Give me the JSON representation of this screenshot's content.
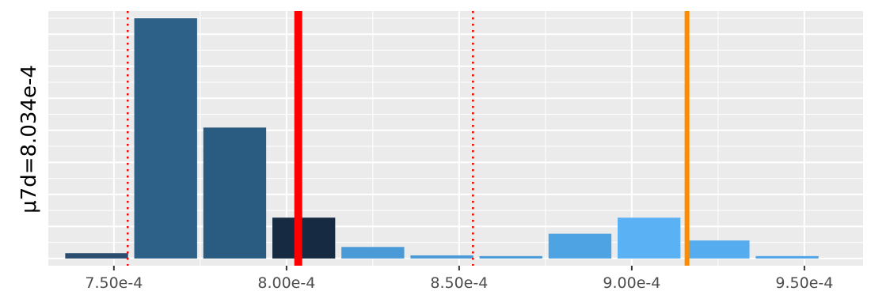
{
  "chart_data": {
    "type": "bar",
    "ylabel": "μ7d=8.034e-4",
    "xlabel": "",
    "x_ticks": [
      {
        "value": 0.00075,
        "label": "7.50e-4"
      },
      {
        "value": 0.0008,
        "label": "8.00e-4"
      },
      {
        "value": 0.00085,
        "label": "8.50e-4"
      },
      {
        "value": 0.0009,
        "label": "9.00e-4"
      },
      {
        "value": 0.00095,
        "label": "9.50e-4"
      }
    ],
    "xlim": [
      0.000731,
      0.000967
    ],
    "ylim": [
      -0.03,
      1.03
    ],
    "bar_width": 1.82e-05,
    "bars": [
      {
        "x": 0.000745,
        "value": 0.022,
        "color": "#2a4d70"
      },
      {
        "x": 0.000765,
        "value": 1.0,
        "color": "#2e6188"
      },
      {
        "x": 0.000785,
        "value": 0.545,
        "color": "#2a5b80"
      },
      {
        "x": 0.000805,
        "value": 0.17,
        "color": "#162a42"
      },
      {
        "x": 0.000825,
        "value": 0.048,
        "color": "#4a9ad8"
      },
      {
        "x": 0.000845,
        "value": 0.013,
        "color": "#4a9ad8"
      },
      {
        "x": 0.000865,
        "value": 0.01,
        "color": "#4a9ad8"
      },
      {
        "x": 0.000885,
        "value": 0.103,
        "color": "#4ea3e3"
      },
      {
        "x": 0.000905,
        "value": 0.17,
        "color": "#5ab2f4"
      },
      {
        "x": 0.000925,
        "value": 0.075,
        "color": "#55acee"
      },
      {
        "x": 0.000945,
        "value": 0.01,
        "color": "#50a5e8"
      }
    ],
    "vlines": [
      {
        "x": 0.0008034,
        "color": "#ff0000",
        "style": "solid",
        "role": "mean"
      },
      {
        "x": 0.000754,
        "color": "#ff0000",
        "style": "dotted",
        "role": "lower"
      },
      {
        "x": 0.000854,
        "color": "#ff0000",
        "style": "dotted",
        "role": "upper"
      },
      {
        "x": 0.000916,
        "color": "#ff8c00",
        "style": "solid",
        "role": "reference"
      }
    ],
    "grid": true,
    "panel_background": "#ebebeb"
  }
}
